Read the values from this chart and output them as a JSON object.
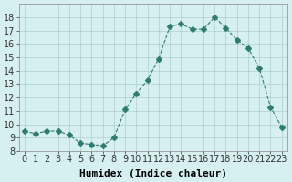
{
  "x": [
    0,
    1,
    2,
    3,
    4,
    5,
    6,
    7,
    8,
    9,
    10,
    11,
    12,
    13,
    14,
    15,
    16,
    17,
    18,
    19,
    20,
    21,
    22,
    23
  ],
  "y": [
    9.5,
    9.3,
    9.5,
    9.5,
    9.2,
    8.6,
    8.5,
    8.4,
    9.0,
    11.1,
    12.3,
    13.3,
    14.9,
    17.3,
    17.5,
    17.1,
    17.1,
    18.0,
    17.2,
    16.3,
    15.7,
    14.2,
    11.3,
    9.8
  ],
  "line_color": "#2e7d6e",
  "marker": "D",
  "marker_size": 3,
  "bg_color": "#d6eff0",
  "grid_color": "#b0cfd0",
  "xlabel": "Humidex (Indice chaleur)",
  "ylim": [
    8,
    19
  ],
  "xlim": [
    -0.5,
    23.5
  ],
  "yticks": [
    8,
    9,
    10,
    11,
    12,
    13,
    14,
    15,
    16,
    17,
    18
  ],
  "xticks": [
    0,
    1,
    2,
    3,
    4,
    5,
    6,
    7,
    8,
    9,
    10,
    11,
    12,
    13,
    14,
    15,
    16,
    17,
    18,
    19,
    20,
    21,
    22,
    23
  ],
  "tick_fontsize": 7,
  "xlabel_fontsize": 8,
  "line_width": 0.8
}
